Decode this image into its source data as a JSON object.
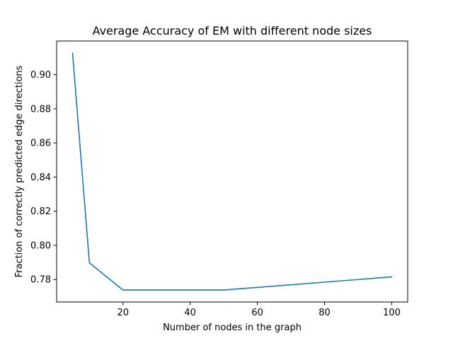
{
  "chart_data": {
    "type": "line",
    "title": "Average Accuracy of EM with different node sizes",
    "xlabel": "Number of nodes in the graph",
    "ylabel": "Fraction of correctly predicted edge directions",
    "xlim": [
      0.25,
      104.75
    ],
    "ylim": [
      0.7668,
      0.9197
    ],
    "xticks": [
      20,
      40,
      60,
      80,
      100
    ],
    "xtick_labels": [
      "20",
      "40",
      "60",
      "80",
      "100"
    ],
    "yticks": [
      0.78,
      0.8,
      0.82,
      0.84,
      0.86,
      0.88,
      0.9
    ],
    "ytick_labels": [
      "0.78",
      "0.80",
      "0.82",
      "0.84",
      "0.86",
      "0.88",
      "0.90"
    ],
    "grid": false,
    "legend": "none",
    "series": [
      {
        "color": "#1f77b4",
        "x": [
          5,
          10,
          20,
          50,
          100
        ],
        "y": [
          0.9125,
          0.7898,
          0.7738,
          0.7738,
          0.7815
        ]
      }
    ]
  }
}
